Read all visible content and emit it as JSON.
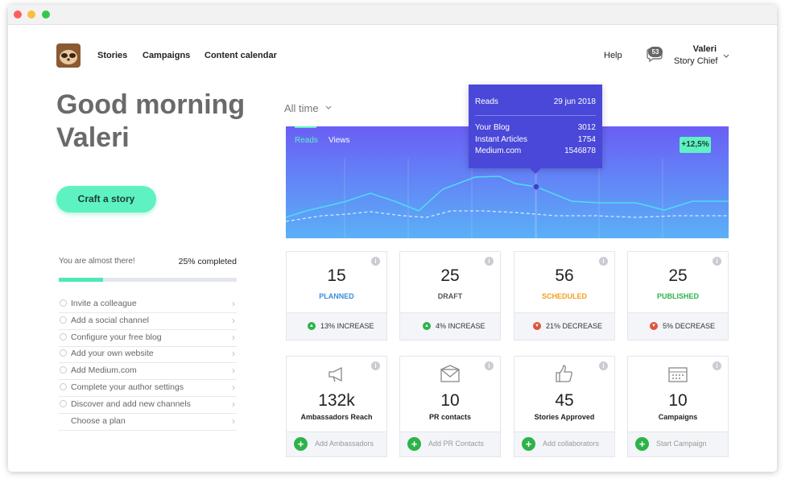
{
  "nav": {
    "links": [
      "Stories",
      "Campaigns",
      "Content calendar"
    ],
    "help": "Help",
    "notifications": 53,
    "user_name": "Valeri",
    "user_role": "Story Chief"
  },
  "greeting": {
    "lines": [
      "Good morning",
      "Valeri"
    ],
    "button": "Craft a story"
  },
  "progress": {
    "message": "You are almost there!",
    "label": "25% completed",
    "value": 25
  },
  "checklist": [
    "Invite a colleague",
    "Add a social channel",
    "Configure your free blog",
    "Add your own website",
    "Add Medium.com",
    "Complete your author settings",
    "Discover and add new channels",
    "Choose a plan"
  ],
  "chart": {
    "period": "All time",
    "tabs": [
      "Reads",
      "Views"
    ],
    "badge": "+12,5%",
    "tooltip": {
      "title": "Reads",
      "date": "29 jun 2018",
      "rows": [
        {
          "name": "Your Blog",
          "value": 3012
        },
        {
          "name": "Instant Articles",
          "value": 1754
        },
        {
          "name": "Medium.com",
          "value": 1546878
        }
      ]
    }
  },
  "stats": [
    {
      "value": 15,
      "label": "PLANNED",
      "change": "13% INCREASE",
      "direction": "up"
    },
    {
      "value": 25,
      "label": "DRAFT",
      "change": "4% INCREASE",
      "direction": "up"
    },
    {
      "value": 56,
      "label": "SCHEDULED",
      "change": "21% DECREASE",
      "direction": "down"
    },
    {
      "value": 25,
      "label": "PUBLISHED",
      "change": "5% DECREASE",
      "direction": "down"
    }
  ],
  "metrics": [
    {
      "value": "132k",
      "label": "Ambassadors Reach",
      "action": "Add Ambassadors"
    },
    {
      "value": "10",
      "label": "PR contacts",
      "action": "Add PR Contacts"
    },
    {
      "value": "45",
      "label": "Stories Approved",
      "action": "Add collaborators"
    },
    {
      "value": "10",
      "label": "Campaigns",
      "action": "Start Campaign"
    }
  ]
}
